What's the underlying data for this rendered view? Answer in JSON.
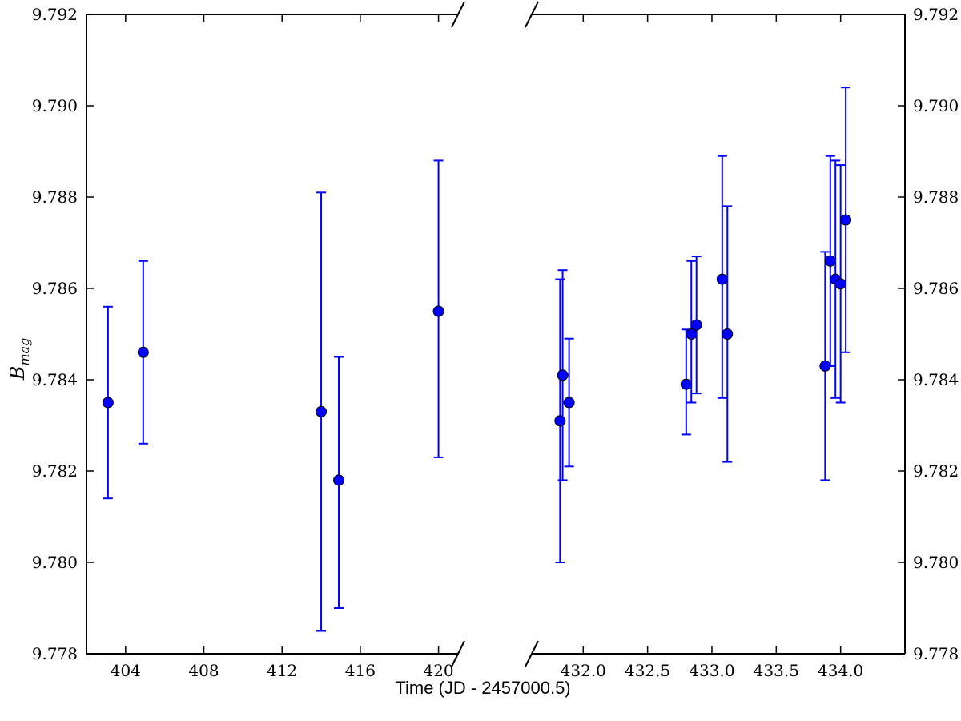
{
  "chart_data": {
    "type": "scatter",
    "title": "",
    "xlabel": "Time (JD - 2457000.5)",
    "ylabel": {
      "main": "B",
      "subscript": "mag"
    },
    "ylim": [
      9.778,
      9.792
    ],
    "yticks": [
      "9.778",
      "9.780",
      "9.782",
      "9.784",
      "9.786",
      "9.788",
      "9.790",
      "9.792"
    ],
    "y_axis_both_sides": true,
    "broken_x_axis": true,
    "marker_color": "#0000ff",
    "errorbar_color": "#0000ff",
    "grid": false,
    "panels": [
      {
        "xlim": [
          402,
          421
        ],
        "xticks": [
          "404",
          "408",
          "412",
          "416",
          "420"
        ],
        "points": [
          {
            "x": 403.1,
            "y": 9.7835,
            "yerr_low": 9.7814,
            "yerr_high": 9.7856
          },
          {
            "x": 404.9,
            "y": 9.7846,
            "yerr_low": 9.7826,
            "yerr_high": 9.7866
          },
          {
            "x": 414.0,
            "y": 9.7833,
            "yerr_low": 9.7785,
            "yerr_high": 9.7881
          },
          {
            "x": 414.9,
            "y": 9.7818,
            "yerr_low": 9.779,
            "yerr_high": 9.7845
          },
          {
            "x": 420.0,
            "y": 9.7855,
            "yerr_low": 9.7823,
            "yerr_high": 9.7888
          }
        ]
      },
      {
        "xlim": [
          431.6,
          434.5
        ],
        "xticks": [
          "432.0",
          "432.5",
          "433.0",
          "433.5",
          "434.0"
        ],
        "points": [
          {
            "x": 431.82,
            "y": 9.7831,
            "yerr_low": 9.78,
            "yerr_high": 9.7862
          },
          {
            "x": 431.84,
            "y": 9.7841,
            "yerr_low": 9.7818,
            "yerr_high": 9.7864
          },
          {
            "x": 431.89,
            "y": 9.7835,
            "yerr_low": 9.7821,
            "yerr_high": 9.7849
          },
          {
            "x": 432.8,
            "y": 9.7839,
            "yerr_low": 9.7828,
            "yerr_high": 9.7851
          },
          {
            "x": 432.84,
            "y": 9.785,
            "yerr_low": 9.7835,
            "yerr_high": 9.7866
          },
          {
            "x": 432.88,
            "y": 9.7852,
            "yerr_low": 9.7837,
            "yerr_high": 9.7867
          },
          {
            "x": 433.08,
            "y": 9.7862,
            "yerr_low": 9.7836,
            "yerr_high": 9.7889
          },
          {
            "x": 433.12,
            "y": 9.785,
            "yerr_low": 9.7822,
            "yerr_high": 9.7878
          },
          {
            "x": 433.88,
            "y": 9.7843,
            "yerr_low": 9.7818,
            "yerr_high": 9.7868
          },
          {
            "x": 433.92,
            "y": 9.7866,
            "yerr_low": 9.7843,
            "yerr_high": 9.7889
          },
          {
            "x": 433.96,
            "y": 9.7862,
            "yerr_low": 9.7836,
            "yerr_high": 9.7888
          },
          {
            "x": 434.0,
            "y": 9.7861,
            "yerr_low": 9.7835,
            "yerr_high": 9.7887
          },
          {
            "x": 434.04,
            "y": 9.7875,
            "yerr_low": 9.7846,
            "yerr_high": 9.7904
          }
        ]
      }
    ]
  }
}
